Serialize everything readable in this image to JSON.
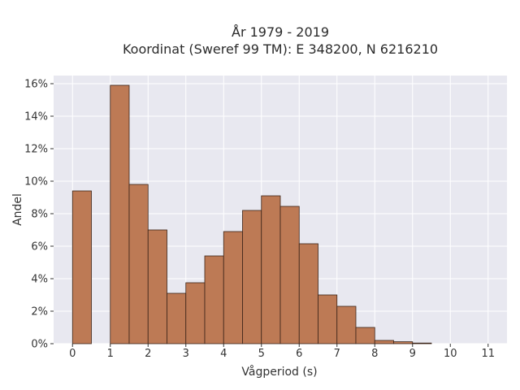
{
  "chart_data": {
    "type": "bar",
    "title": "År 1979 - 2019",
    "subtitle": "Koordinat (Sweref 99 TM): E 348200, N 6216210",
    "xlabel": "Vågperiod (s)",
    "ylabel": "Andel",
    "xlim": [
      -0.5,
      11.5
    ],
    "ylim": [
      0,
      16.5
    ],
    "x_ticks": [
      0,
      1,
      2,
      3,
      4,
      5,
      6,
      7,
      8,
      9,
      10,
      11
    ],
    "y_ticks": [
      0,
      2,
      4,
      6,
      8,
      10,
      12,
      14,
      16
    ],
    "y_tick_labels": [
      "0%",
      "2%",
      "4%",
      "6%",
      "8%",
      "10%",
      "12%",
      "14%",
      "16%"
    ],
    "bin_width": 0.5,
    "bins": [
      {
        "x0": 0.0,
        "value": 9.4
      },
      {
        "x0": 1.0,
        "value": 15.9
      },
      {
        "x0": 1.5,
        "value": 9.8
      },
      {
        "x0": 2.0,
        "value": 7.0
      },
      {
        "x0": 2.5,
        "value": 3.1
      },
      {
        "x0": 3.0,
        "value": 3.75
      },
      {
        "x0": 3.5,
        "value": 5.4
      },
      {
        "x0": 4.0,
        "value": 6.9
      },
      {
        "x0": 4.5,
        "value": 8.2
      },
      {
        "x0": 5.0,
        "value": 9.1
      },
      {
        "x0": 5.5,
        "value": 8.45
      },
      {
        "x0": 6.0,
        "value": 6.15
      },
      {
        "x0": 6.5,
        "value": 3.0
      },
      {
        "x0": 7.0,
        "value": 2.3
      },
      {
        "x0": 7.5,
        "value": 1.0
      },
      {
        "x0": 8.0,
        "value": 0.2
      },
      {
        "x0": 8.5,
        "value": 0.12
      },
      {
        "x0": 9.0,
        "value": 0.04
      }
    ],
    "grid": true,
    "legend": false,
    "colors": {
      "bar_fill": "#bd7a55",
      "bar_edge": "#3b2418",
      "plot_bg": "#e8e8f0",
      "grid": "#ffffff"
    }
  }
}
